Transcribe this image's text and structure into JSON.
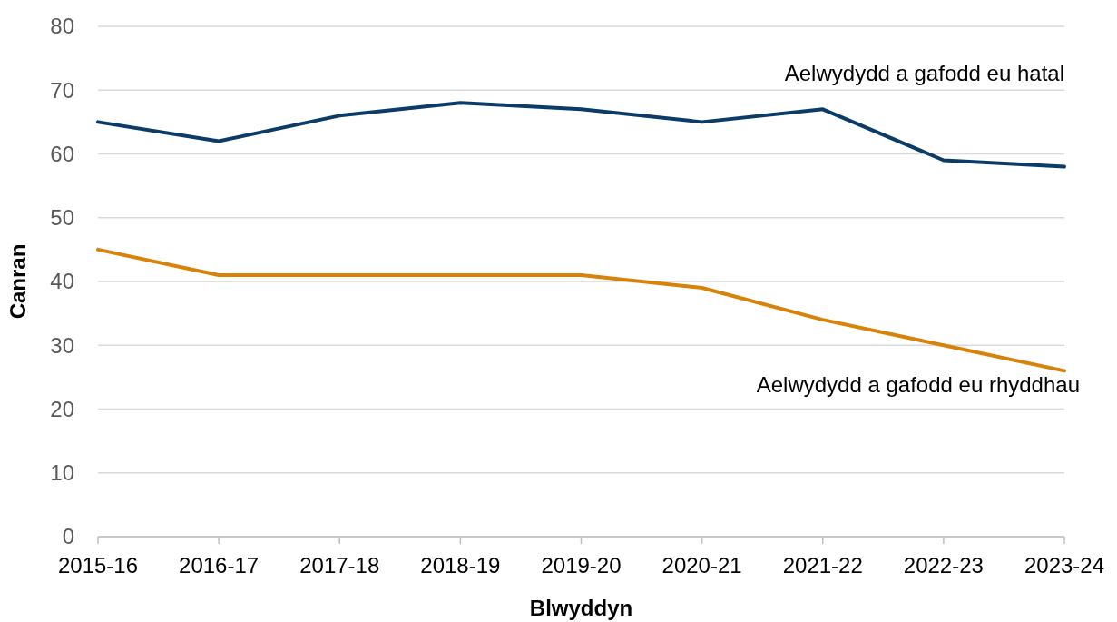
{
  "chart_data": {
    "type": "line",
    "xlabel": "Blwyddyn",
    "ylabel": "Canran",
    "categories": [
      "2015-16",
      "2016-17",
      "2017-18",
      "2018-19",
      "2019-20",
      "2020-21",
      "2021-22",
      "2022-23",
      "2023-24"
    ],
    "series": [
      {
        "name": "Aelwydydd a gafodd eu hatal",
        "color": "#0b3c68",
        "values": [
          65,
          62,
          66,
          68,
          67,
          65,
          67,
          59,
          58
        ]
      },
      {
        "name": "Aelwydydd a gafodd eu rhyddhau",
        "color": "#d9820a",
        "values": [
          45,
          41,
          41,
          41,
          41,
          39,
          34,
          30,
          26
        ]
      }
    ],
    "ylim": [
      0,
      80
    ],
    "yticks": [
      0,
      10,
      20,
      30,
      40,
      50,
      60,
      70,
      80
    ],
    "grid": "y",
    "marker": "none",
    "line_style": "solid"
  }
}
